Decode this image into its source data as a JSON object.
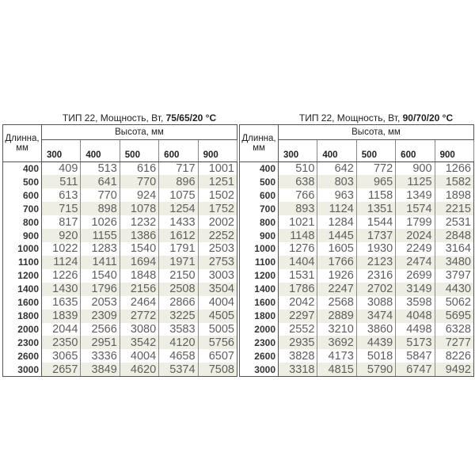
{
  "tables": [
    {
      "title_prefix": "ТИП 22, Мощность, Вт, ",
      "title_bold": "75/65/20 °C",
      "height_header": "Высота, мм",
      "length_header": "Длинна, мм",
      "columns": [
        "300",
        "400",
        "500",
        "600",
        "900"
      ],
      "rows": [
        {
          "length": "400",
          "values": [
            "409",
            "513",
            "616",
            "717",
            "1001"
          ]
        },
        {
          "length": "500",
          "values": [
            "511",
            "641",
            "770",
            "896",
            "1251"
          ]
        },
        {
          "length": "600",
          "values": [
            "613",
            "770",
            "924",
            "1075",
            "1502"
          ]
        },
        {
          "length": "700",
          "values": [
            "715",
            "898",
            "1078",
            "1254",
            "1752"
          ]
        },
        {
          "length": "800",
          "values": [
            "817",
            "1026",
            "1232",
            "1433",
            "2002"
          ]
        },
        {
          "length": "900",
          "values": [
            "920",
            "1155",
            "1386",
            "1612",
            "2252"
          ]
        },
        {
          "length": "1000",
          "values": [
            "1022",
            "1283",
            "1540",
            "1791",
            "2503"
          ]
        },
        {
          "length": "1100",
          "values": [
            "1124",
            "1411",
            "1694",
            "1971",
            "2753"
          ]
        },
        {
          "length": "1200",
          "values": [
            "1226",
            "1540",
            "1848",
            "2150",
            "3003"
          ]
        },
        {
          "length": "1400",
          "values": [
            "1430",
            "1796",
            "2156",
            "2508",
            "3504"
          ]
        },
        {
          "length": "1600",
          "values": [
            "1635",
            "2053",
            "2464",
            "2866",
            "4004"
          ]
        },
        {
          "length": "1800",
          "values": [
            "1839",
            "2309",
            "2772",
            "3225",
            "4505"
          ]
        },
        {
          "length": "2000",
          "values": [
            "2044",
            "2566",
            "3080",
            "3583",
            "5005"
          ]
        },
        {
          "length": "2300",
          "values": [
            "2350",
            "2951",
            "3542",
            "4120",
            "5756"
          ]
        },
        {
          "length": "2600",
          "values": [
            "3065",
            "3336",
            "4004",
            "4658",
            "6507"
          ]
        },
        {
          "length": "3000",
          "values": [
            "2657",
            "3849",
            "4620",
            "5374",
            "7508"
          ]
        }
      ]
    },
    {
      "title_prefix": "ТИП 22, Мощность, Вт, ",
      "title_bold": "90/70/20 °C",
      "height_header": "Высота, мм",
      "length_header": "Длинна, мм",
      "columns": [
        "300",
        "400",
        "500",
        "600",
        "900"
      ],
      "rows": [
        {
          "length": "400",
          "values": [
            "510",
            "642",
            "772",
            "900",
            "1266"
          ]
        },
        {
          "length": "500",
          "values": [
            "638",
            "803",
            "965",
            "1125",
            "1582"
          ]
        },
        {
          "length": "600",
          "values": [
            "766",
            "963",
            "1158",
            "1349",
            "1898"
          ]
        },
        {
          "length": "700",
          "values": [
            "893",
            "1124",
            "1351",
            "1574",
            "2215"
          ]
        },
        {
          "length": "800",
          "values": [
            "1021",
            "1284",
            "1544",
            "1799",
            "2531"
          ]
        },
        {
          "length": "900",
          "values": [
            "1148",
            "1445",
            "1737",
            "2024",
            "2848"
          ]
        },
        {
          "length": "1000",
          "values": [
            "1276",
            "1605",
            "1930",
            "2249",
            "3164"
          ]
        },
        {
          "length": "1100",
          "values": [
            "1404",
            "1766",
            "2123",
            "2474",
            "3480"
          ]
        },
        {
          "length": "1200",
          "values": [
            "1531",
            "1926",
            "2316",
            "2699",
            "3797"
          ]
        },
        {
          "length": "1400",
          "values": [
            "1786",
            "2247",
            "2702",
            "3149",
            "4430"
          ]
        },
        {
          "length": "1600",
          "values": [
            "2042",
            "2568",
            "3088",
            "3598",
            "5062"
          ]
        },
        {
          "length": "1800",
          "values": [
            "2297",
            "2889",
            "3474",
            "4048",
            "5695"
          ]
        },
        {
          "length": "2000",
          "values": [
            "2552",
            "3210",
            "3860",
            "4498",
            "6328"
          ]
        },
        {
          "length": "2300",
          "values": [
            "2935",
            "3692",
            "4439",
            "5173",
            "7277"
          ]
        },
        {
          "length": "2600",
          "values": [
            "3828",
            "4173",
            "5018",
            "5847",
            "8226"
          ]
        },
        {
          "length": "3000",
          "values": [
            "3318",
            "4815",
            "5790",
            "6747",
            "9492"
          ]
        }
      ]
    }
  ]
}
